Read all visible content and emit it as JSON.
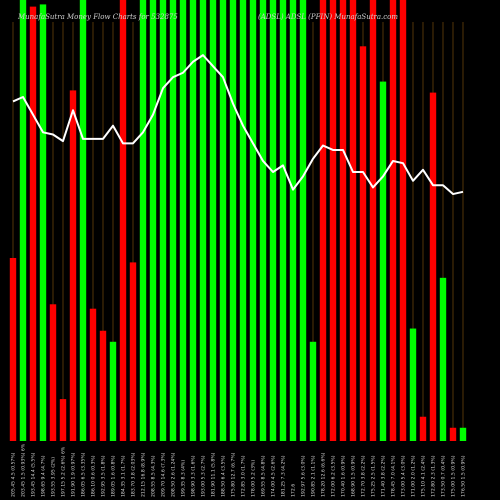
{
  "chart_data": {
    "type": "bar",
    "title_left": "MunafaSutra  Money Flow  Charts for 532875",
    "title_right": "(ADSL)  ADSL  (PFIN)  MunafaSutra.com",
    "background": "#000000",
    "colors": {
      "up": "#00ff00",
      "down": "#ff0000",
      "line": "#ffffff",
      "grid": "#8a5a10"
    },
    "bar_ylim": [
      0,
      100
    ],
    "line_ylim": [
      0,
      100
    ],
    "categories": [
      "205.45 4.5 (0.57%)",
      "203.45 1.5 (0.93%) 6%",
      "193.45 14.4 (5.5%)",
      "198.65 9.4 (4.7%)",
      "193.55 3.95 (2%)",
      "197.15 5.2 (2.6%) 6%",
      "191.90 1.9 (0.97%)",
      "186.05 6.5 (3.35%)",
      "186.10 0.6 (0.3%)",
      "192.95 3.5 (1.8%)",
      "189.05 1.6 (0.8%)",
      "184.35 3.1 (1.7%)",
      "183.70 3.8 (2.03%)",
      "212.15 16.8 (8.9%)",
      "208.55 8.5 (4.3%)",
      "209.70 14.6 (7.3%)",
      "208.50 2.6 (1.24%)",
      "199.35 8.3 (4%)",
      "198.90 3.3 (1.6%)",
      "193.00 5.3 (2.7%)",
      "181.90 11.1 (5.8%)",
      "188.50 6.4 (3.5%)",
      "175.80 12.7 (6.7%)",
      "172.85 3.0 (1.7%)",
      "178.00 5.2 (3%)",
      "169.55 8.5 (4.8%)",
      "174.00 4.5 (2.6%)",
      "181.25 7.3 (4.2%)",
      "172.6",
      "192.97 5.6 (3.0%)",
      "190.85 2.1 (1.1%)",
      "178.20 12.6 (6.6%)",
      "172.00 6.2 (3.5%)",
      "170.40 1.6 (0.9%)",
      "168.90 1.5 (0.9%)",
      "172.70 3.8 (2.2%)",
      "175.25 2.5 (1.5%)",
      "171.40 3.8 (2.2%)",
      "178.45 7.0 (4.1%)",
      "173.00 5.4 (3.0%)",
      "171.00 2.0 (1.2%)",
      "175.10 4.1 (2.4%)",
      "172.80 2.3 (1.3%)",
      "173.50 0.7 (0.4%)",
      "175.00 1.5 (0.9%)",
      "176.50 1.5 (0.9%)"
    ],
    "series": [
      {
        "type": "bar",
        "colors": [
          "red",
          "green",
          "red",
          "green",
          "red",
          "red",
          "red",
          "green",
          "red",
          "red",
          "green",
          "red",
          "red",
          "green",
          "green",
          "green",
          "green",
          "green",
          "green",
          "green",
          "green",
          "green",
          "green",
          "green",
          "green",
          "green",
          "green",
          "green",
          "green",
          "green",
          "green",
          "red",
          "red",
          "red",
          "red",
          "red",
          "red",
          "green",
          "red",
          "red",
          "green",
          "red",
          "red",
          "green",
          "red",
          "green"
        ],
        "values": [
          41.5,
          100,
          98.5,
          99,
          31,
          9.5,
          79.5,
          100,
          30,
          25,
          22.5,
          100,
          40.5,
          100,
          100,
          100,
          100,
          100,
          100,
          100,
          100,
          100,
          100,
          100,
          100,
          100,
          100,
          100,
          100,
          100,
          22.5,
          100,
          100,
          100,
          100,
          89.5,
          100,
          81.5,
          100,
          100,
          25.5,
          5.5,
          79,
          37,
          3,
          3
        ]
      },
      {
        "type": "line",
        "values": [
          77,
          78,
          74,
          70,
          69.5,
          68,
          75,
          68.5,
          68.5,
          68.5,
          71.5,
          67.5,
          67.5,
          70,
          74,
          80,
          82.5,
          83.5,
          86,
          87.5,
          85,
          82.5,
          76.5,
          71.5,
          67.5,
          63.5,
          61,
          62.5,
          57,
          60,
          64,
          67,
          66,
          66,
          61,
          61,
          57.5,
          60,
          63.5,
          63,
          59,
          61.5,
          58,
          58,
          56,
          56.5
        ]
      }
    ]
  }
}
